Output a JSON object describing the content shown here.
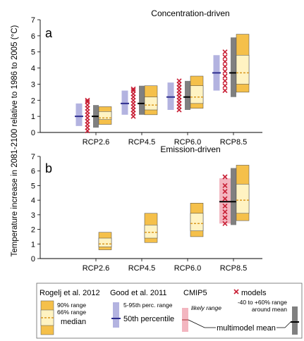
{
  "chart_data": [
    {
      "type": "box",
      "title": "Concentration-driven",
      "panel_label": "a",
      "ylabel": "Temperature increase in 2081-2100 relative to 1986 to 2005 (°C)",
      "ylim": [
        0,
        7
      ],
      "yticks": [
        0,
        1,
        2,
        3,
        4,
        5,
        6,
        7
      ],
      "categories": [
        "RCP2.6",
        "RCP4.5",
        "RCP6.0",
        "RCP8.5"
      ],
      "series": [
        {
          "name": "Good et al. 2011",
          "range_5_95": [
            [
              0.4,
              1.8
            ],
            [
              1.1,
              2.6
            ],
            [
              1.4,
              3.1
            ],
            [
              2.6,
              4.8
            ]
          ],
          "median": [
            1.0,
            1.8,
            2.2,
            3.7
          ]
        },
        {
          "name": "CMIP5 models",
          "models": [
            [
              0.1,
              0.3,
              0.5,
              0.7,
              0.9,
              1.1,
              1.3,
              1.5,
              1.7,
              1.9,
              2.0
            ],
            [
              1.0,
              1.2,
              1.4,
              1.6,
              1.8,
              2.0,
              2.2,
              2.4,
              2.6,
              2.7
            ],
            [
              1.4,
              1.6,
              1.8,
              2.0,
              2.2,
              2.4,
              2.6,
              2.8,
              3.0,
              3.2
            ],
            [
              2.6,
              2.9,
              3.2,
              3.5,
              3.8,
              4.1,
              4.4,
              4.7,
              5.0
            ]
          ]
        },
        {
          "name": "CMIP5 multimodel mean",
          "range": [
            [
              0.3,
              1.7
            ],
            [
              1.1,
              2.9
            ],
            [
              1.4,
              3.2
            ],
            [
              2.2,
              5.9
            ]
          ],
          "mean": [
            1.0,
            1.8,
            2.2,
            3.7
          ]
        },
        {
          "name": "Rogelj et al. 2012",
          "range_90": [
            [
              0.5,
              1.6
            ],
            [
              1.1,
              2.9
            ],
            [
              1.5,
              3.5
            ],
            [
              2.5,
              6.1
            ]
          ],
          "range_66": [
            [
              0.8,
              1.3
            ],
            [
              1.4,
              2.2
            ],
            [
              1.8,
              2.9
            ],
            [
              3.0,
              4.8
            ]
          ],
          "median": [
            0.9,
            1.7,
            2.2,
            3.7
          ]
        }
      ]
    },
    {
      "type": "box",
      "title": "Emission-driven",
      "panel_label": "b",
      "ylabel": "Temperature increase in 2081-2100 relative to 1986 to 2005 (°C)",
      "ylim": [
        0,
        7
      ],
      "yticks": [
        0,
        1,
        2,
        3,
        4,
        5,
        6,
        7
      ],
      "categories": [
        "RCP2.6",
        "RCP4.5",
        "RCP6.0",
        "RCP8.5"
      ],
      "series": [
        {
          "name": "CMIP5 models",
          "models": [
            [],
            [],
            [],
            [
              2.4,
              2.8,
              3.2,
              3.6,
              4.1,
              4.6,
              5.0,
              5.6
            ]
          ]
        },
        {
          "name": "CMIP5 likely range",
          "range": [
            null,
            null,
            null,
            [
              2.4,
              5.5
            ]
          ]
        },
        {
          "name": "CMIP5 multimodel mean",
          "range": [
            null,
            null,
            null,
            [
              2.3,
              6.2
            ]
          ],
          "mean": [
            null,
            null,
            null,
            3.9
          ]
        },
        {
          "name": "Rogelj et al. 2012",
          "range_90": [
            [
              0.6,
              1.8
            ],
            [
              1.1,
              3.1
            ],
            [
              1.5,
              3.8
            ],
            [
              2.6,
              6.4
            ]
          ],
          "range_66": [
            [
              0.8,
              1.4
            ],
            [
              1.4,
              2.3
            ],
            [
              1.9,
              3.1
            ],
            [
              3.1,
              5.1
            ]
          ],
          "median": [
            1.0,
            1.8,
            2.4,
            4.0
          ]
        }
      ]
    }
  ],
  "colors": {
    "rogelj_90": "#f5c04a",
    "rogelj_66": "#fff3c2",
    "rogelj_median": "#d99820",
    "good_range": "#b3b3e0",
    "good_median": "#2e2e8e",
    "models": "#c81e34",
    "likely": "#f3b6c0",
    "mmm_range": "#808080",
    "mmm_mean": "#000000"
  },
  "legend": {
    "rogelj_title": "Rogelj et al. 2012",
    "rogelj_90": "90% range",
    "rogelj_66": "66% range",
    "rogelj_median": "median",
    "good_title": "Good et al. 2011",
    "good_range": "5-95th perc. range",
    "good_median": "50th percentile",
    "cmip5_title": "CMIP5",
    "models": "models",
    "likely": "likely range",
    "mmm_range": "-40 to +60% range around mean",
    "mmm_range_line1": "-40 to +60% range",
    "mmm_range_line2": "around mean",
    "mmm_mean": "multimodel mean"
  }
}
